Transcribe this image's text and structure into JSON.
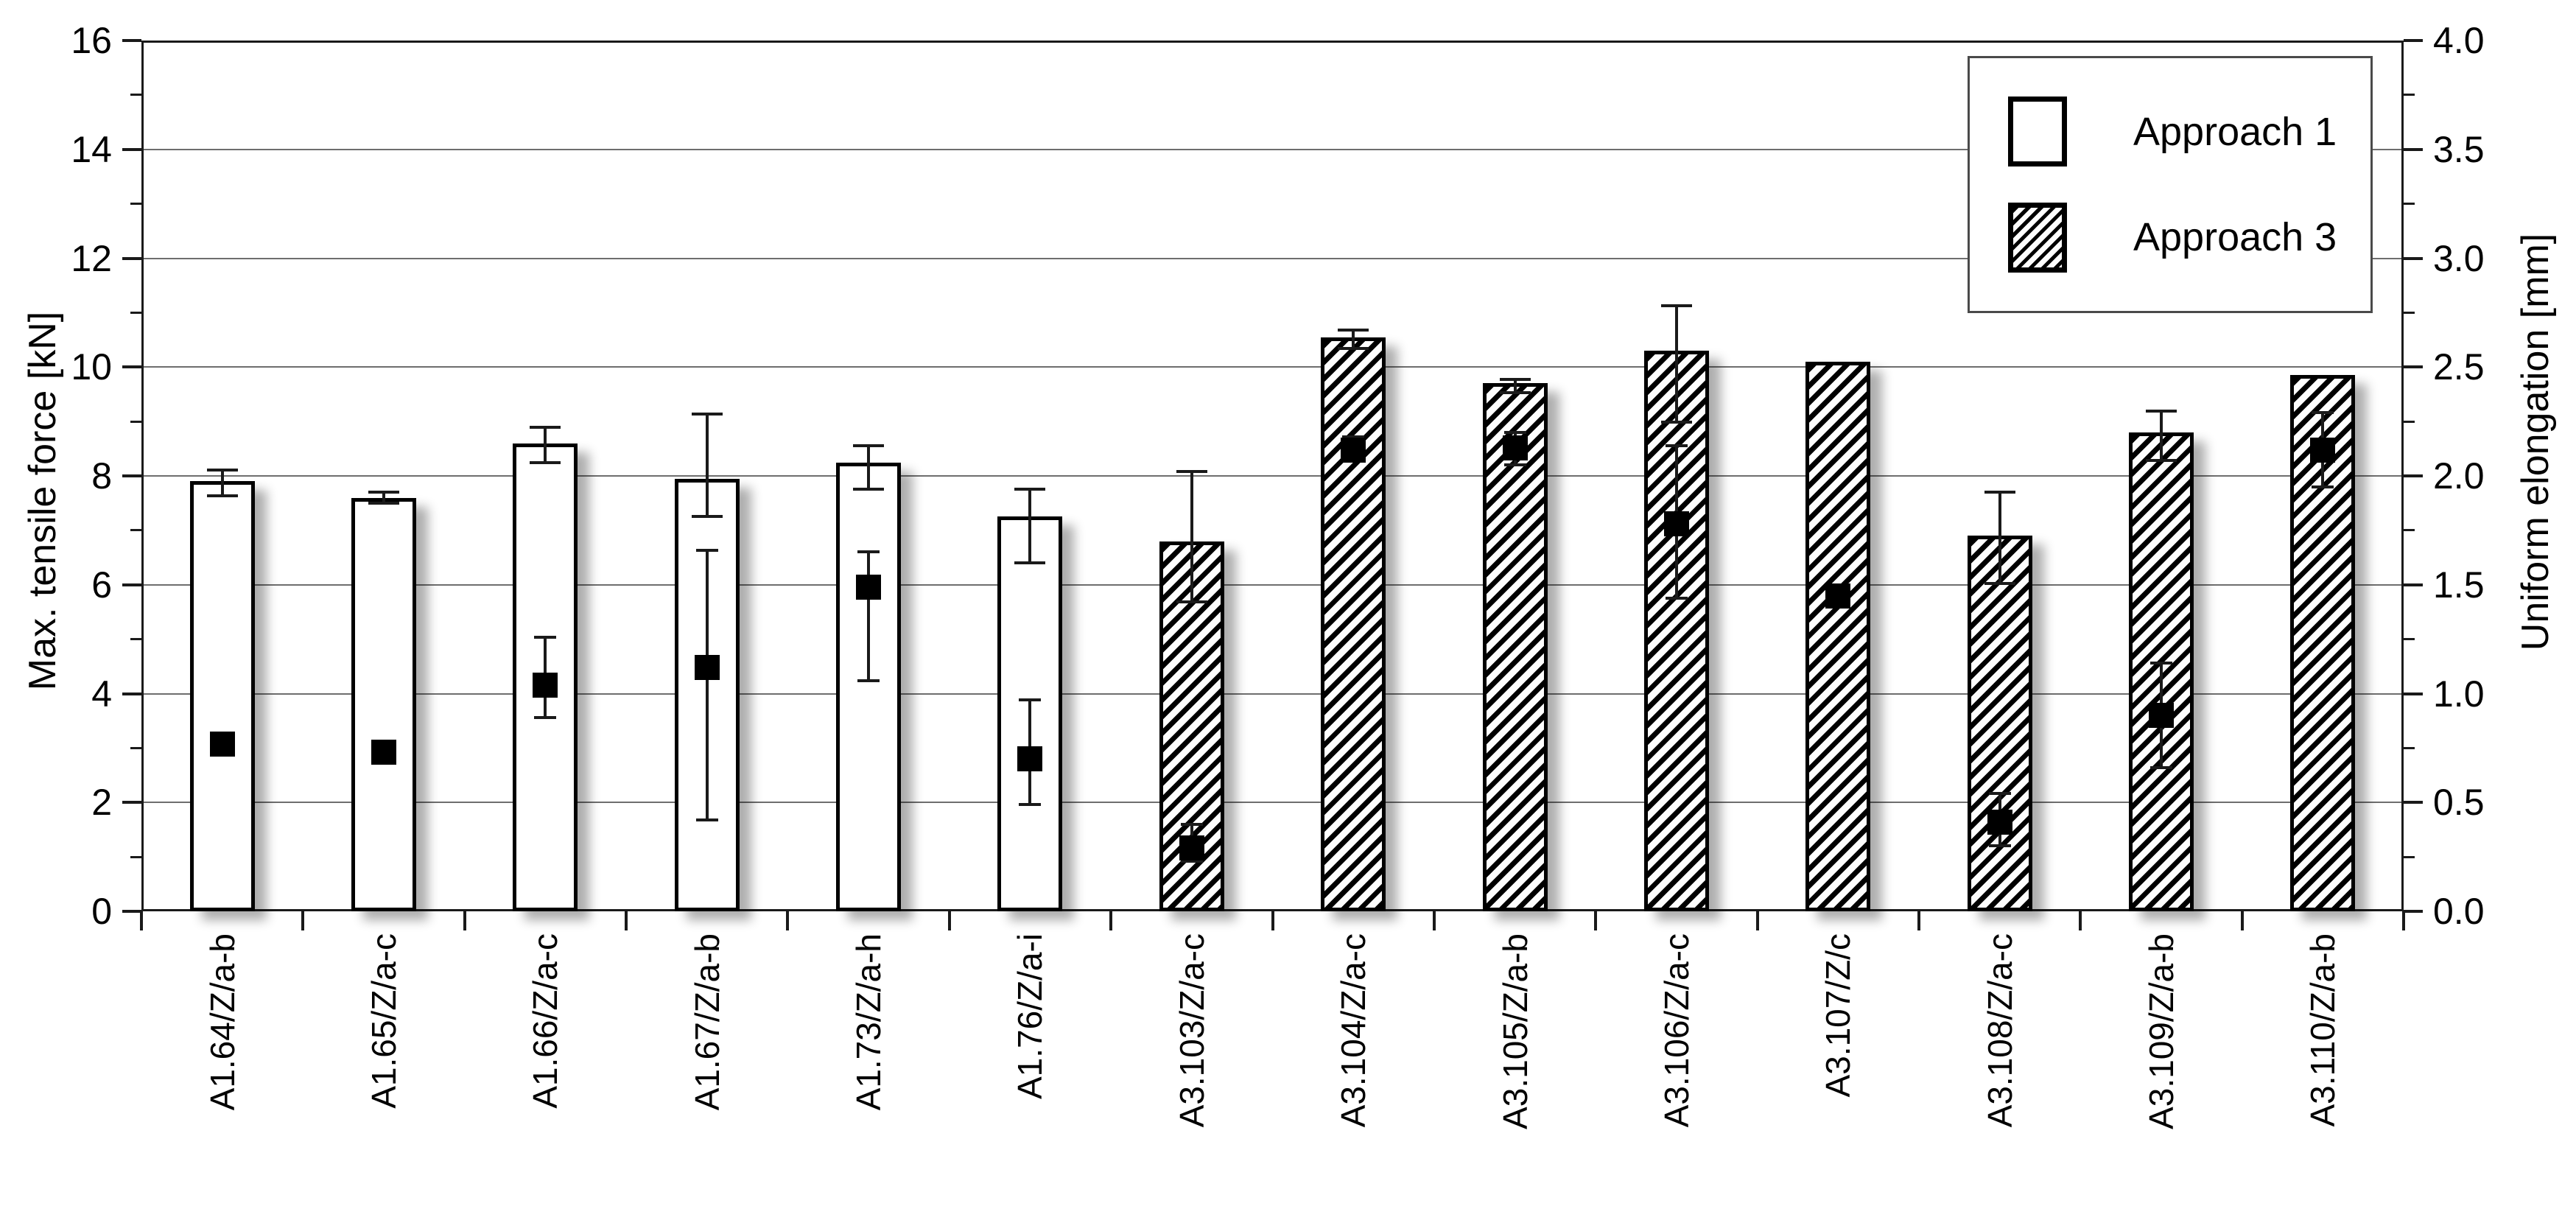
{
  "chart_data": {
    "type": "bar",
    "title": "",
    "xlabel": "",
    "ylabel_left": "Max. tensile force [kN]",
    "ylabel_right": "Uniform elongation [mm]",
    "ylim_left": [
      0,
      16
    ],
    "ylim_right": [
      0.0,
      4.0
    ],
    "grid": "horizontal-major",
    "grid_values_left": [
      2,
      4,
      6,
      8,
      10,
      12,
      14
    ],
    "left_ticks": [
      {
        "v": 16,
        "label": "16"
      },
      {
        "v": 14,
        "label": "14"
      },
      {
        "v": 12,
        "label": "12"
      },
      {
        "v": 10,
        "label": "10"
      },
      {
        "v": 8,
        "label": "8"
      },
      {
        "v": 6,
        "label": "6"
      },
      {
        "v": 4,
        "label": "4"
      },
      {
        "v": 2,
        "label": "2"
      },
      {
        "v": 0,
        "label": "0"
      }
    ],
    "left_minor_ticks": [
      1,
      3,
      5,
      7,
      9,
      11,
      13,
      15
    ],
    "right_ticks": [
      {
        "v": 4.0,
        "label": "4.0"
      },
      {
        "v": 3.5,
        "label": "3.5"
      },
      {
        "v": 3.0,
        "label": "3.0"
      },
      {
        "v": 2.5,
        "label": "2.5"
      },
      {
        "v": 2.0,
        "label": "2.0"
      },
      {
        "v": 1.5,
        "label": "1.5"
      },
      {
        "v": 1.0,
        "label": "1.0"
      },
      {
        "v": 0.5,
        "label": "0.5"
      },
      {
        "v": 0.0,
        "label": "0.0"
      }
    ],
    "right_minor_ticks": [
      0.25,
      0.75,
      1.25,
      1.75,
      2.25,
      2.75,
      3.25,
      3.75
    ],
    "categories": [
      "A1.64/Z/a-b",
      "A1.65/Z/a-c",
      "A1.66/Z/a-c",
      "A1.67/Z/a-b",
      "A1.73/Z/a-h",
      "A1.76/Z/a-i",
      "A3.103/Z/a-c",
      "A3.104/Z/a-c",
      "A3.105/Z/a-b",
      "A3.106/Z/a-c",
      "A3.107/Z/c",
      "A3.108/Z/a-c",
      "A3.109/Z/a-b",
      "A3.110/Z/a-b"
    ],
    "approach_per_category": [
      1,
      1,
      1,
      1,
      1,
      1,
      3,
      3,
      3,
      3,
      3,
      3,
      3,
      3
    ],
    "series": [
      {
        "name": "Max. tensile force (bars)",
        "axis": "left",
        "unit": "kN",
        "style": "bar",
        "values": [
          7.9,
          7.6,
          8.6,
          7.95,
          8.25,
          7.25,
          6.8,
          10.55,
          9.7,
          10.3,
          10.1,
          6.9,
          8.8,
          9.85
        ],
        "err_lo": [
          7.68,
          7.54,
          8.28,
          7.3,
          7.8,
          6.45,
          5.73,
          10.38,
          9.57,
          9.03,
          null,
          6.06,
          8.33,
          null
        ],
        "err_hi": [
          8.15,
          7.74,
          8.93,
          9.18,
          8.6,
          7.8,
          8.12,
          10.72,
          9.82,
          11.17,
          null,
          7.74,
          9.23,
          null
        ]
      },
      {
        "name": "Uniform elongation (black square markers)",
        "axis": "right",
        "unit": "mm",
        "style": "black-square-marker",
        "values": [
          0.78,
          0.74,
          1.05,
          1.13,
          1.5,
          0.71,
          0.3,
          2.13,
          2.14,
          1.79,
          1.46,
          0.42,
          0.91,
          2.13
        ],
        "err_lo": [
          null,
          null,
          0.9,
          0.43,
          1.07,
          0.5,
          0.24,
          2.08,
          2.06,
          1.45,
          null,
          0.31,
          0.67,
          1.96
        ],
        "err_hi": [
          null,
          null,
          1.27,
          1.67,
          1.66,
          0.98,
          0.41,
          2.19,
          2.21,
          2.15,
          null,
          0.55,
          1.15,
          2.3
        ]
      }
    ],
    "legend": {
      "position": "top-right",
      "items": [
        {
          "label": "Approach 1",
          "pattern": "plain"
        },
        {
          "label": "Approach 3",
          "pattern": "hatch"
        }
      ]
    },
    "colors": {
      "bar_fill_plain": "#ffffff",
      "bar_hatch": "#000000",
      "bar_border": "#000000",
      "gridline": "#6e6e6e",
      "marker": "#000000",
      "background": "#ffffff"
    }
  }
}
